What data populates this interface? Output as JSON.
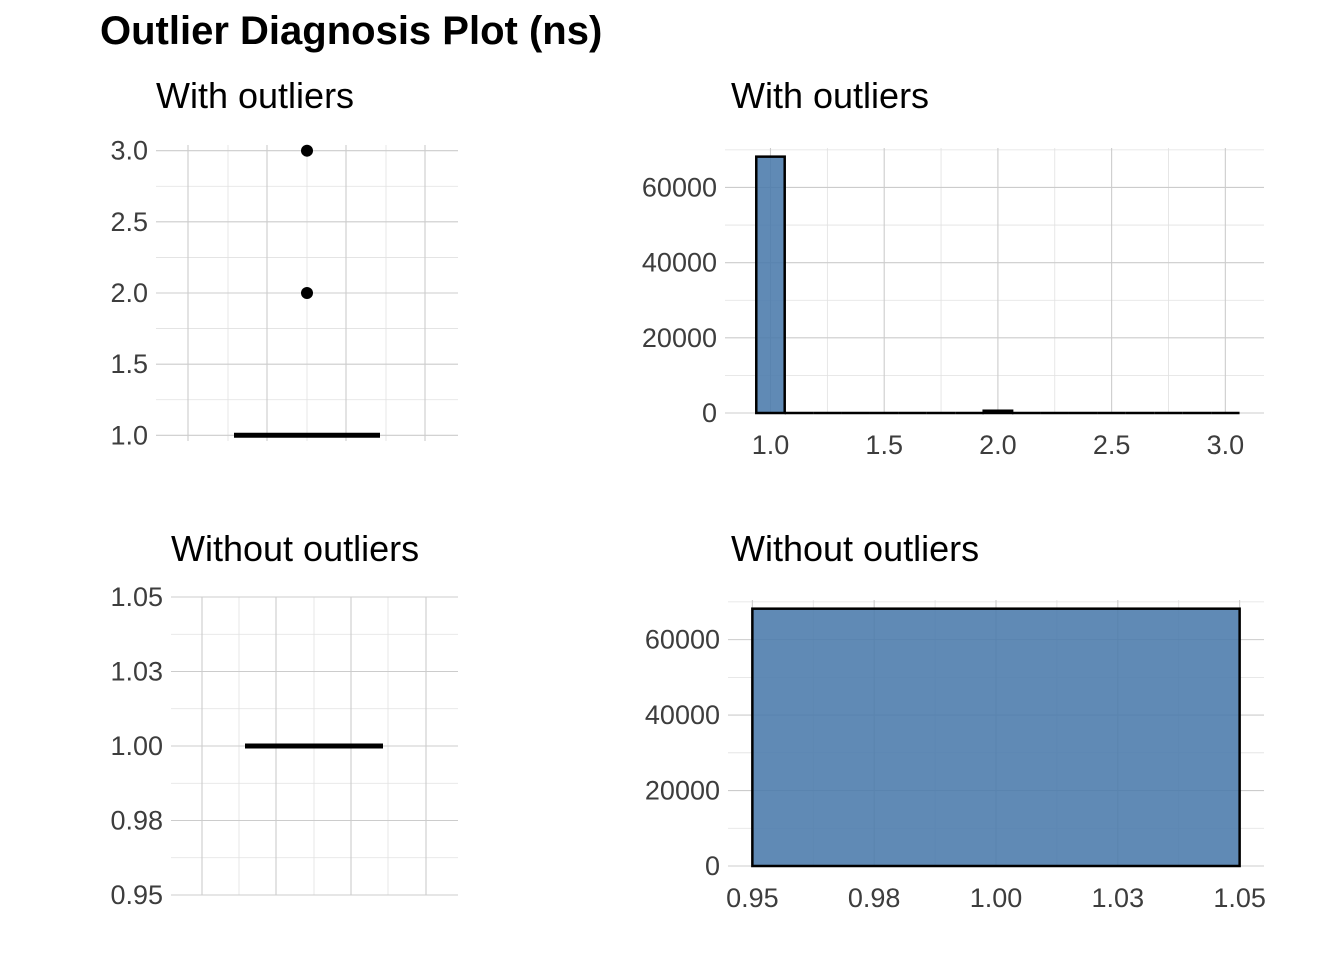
{
  "title": "Outlier Diagnosis Plot (ns)",
  "colors": {
    "bar_fill": "#4a7aab",
    "bar_outline": "#000000",
    "grid": "#cccccc",
    "tick_text": "#3d3d3d"
  },
  "chart_data": [
    {
      "type": "box",
      "title": "With outliers",
      "ylim": [
        0.96,
        3.04
      ],
      "y_ticks": [
        "1.0",
        "1.5",
        "2.0",
        "2.5",
        "3.0"
      ],
      "y_tick_values": [
        1.0,
        1.5,
        2.0,
        2.5,
        3.0
      ],
      "median": 1.0,
      "q1": 1.0,
      "q3": 1.0,
      "outliers": [
        2.0,
        3.0
      ],
      "x_axis_shown": false
    },
    {
      "type": "bar",
      "title": "With outliers",
      "x_ticks": [
        "1.0",
        "1.5",
        "2.0",
        "2.5",
        "3.0"
      ],
      "x_tick_values": [
        1.0,
        1.5,
        2.0,
        2.5,
        3.0
      ],
      "y_ticks": [
        "0",
        "20000",
        "40000",
        "60000"
      ],
      "y_tick_values": [
        0,
        20000,
        40000,
        60000
      ],
      "xlim": [
        0.8,
        3.17
      ],
      "ylim": [
        0,
        70500
      ],
      "bins": [
        {
          "x0": 0.9375,
          "x1": 1.0625,
          "count": 68200
        },
        {
          "x0": 1.0625,
          "x1": 1.1875,
          "count": 0
        },
        {
          "x0": 1.1875,
          "x1": 1.3125,
          "count": 0
        },
        {
          "x0": 1.3125,
          "x1": 1.4375,
          "count": 0
        },
        {
          "x0": 1.4375,
          "x1": 1.5625,
          "count": 0
        },
        {
          "x0": 1.5625,
          "x1": 1.6875,
          "count": 0
        },
        {
          "x0": 1.6875,
          "x1": 1.8125,
          "count": 0
        },
        {
          "x0": 1.8125,
          "x1": 1.9375,
          "count": 0
        },
        {
          "x0": 1.9375,
          "x1": 2.0625,
          "count": 600
        },
        {
          "x0": 2.0625,
          "x1": 2.1875,
          "count": 0
        },
        {
          "x0": 2.1875,
          "x1": 2.3125,
          "count": 0
        },
        {
          "x0": 2.3125,
          "x1": 2.4375,
          "count": 0
        },
        {
          "x0": 2.4375,
          "x1": 2.5625,
          "count": 0
        },
        {
          "x0": 2.5625,
          "x1": 2.6875,
          "count": 0
        },
        {
          "x0": 2.6875,
          "x1": 2.8125,
          "count": 0
        },
        {
          "x0": 2.8125,
          "x1": 2.9375,
          "count": 0
        },
        {
          "x0": 2.9375,
          "x1": 3.0625,
          "count": 20
        }
      ]
    },
    {
      "type": "box",
      "title": "Without outliers",
      "ylim": [
        0.95,
        1.05
      ],
      "y_ticks": [
        "1.05",
        "1.03",
        "1.00",
        "0.98",
        "0.95"
      ],
      "y_tick_values": [
        1.05,
        1.025,
        1.0,
        0.975,
        0.95
      ],
      "median": 1.0,
      "q1": 1.0,
      "q3": 1.0,
      "outliers": [],
      "x_axis_shown": false
    },
    {
      "type": "bar",
      "title": "Without outliers",
      "x_ticks": [
        "0.95",
        "0.98",
        "1.00",
        "1.03",
        "1.05"
      ],
      "x_tick_values": [
        0.95,
        0.975,
        1.0,
        1.025,
        1.05
      ],
      "y_ticks": [
        "0",
        "20000",
        "40000",
        "60000"
      ],
      "y_tick_values": [
        0,
        20000,
        40000,
        60000
      ],
      "xlim": [
        0.945,
        1.055
      ],
      "ylim": [
        0,
        70500
      ],
      "bins": [
        {
          "x0": 0.95,
          "x1": 1.05,
          "count": 68200
        }
      ]
    }
  ]
}
